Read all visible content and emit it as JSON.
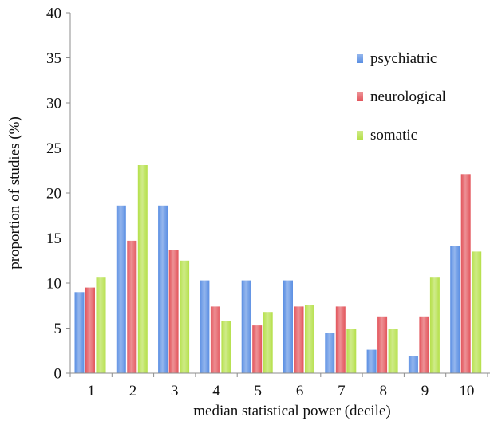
{
  "chart_data": {
    "type": "bar",
    "title": "",
    "xlabel": "median statistical power (decile)",
    "ylabel": "proportion of studies (%)",
    "ylim": [
      0,
      40
    ],
    "yticks": [
      0,
      5,
      10,
      15,
      20,
      25,
      30,
      35,
      40
    ],
    "grid": false,
    "legend_position": "top-right",
    "categories": [
      "1",
      "2",
      "3",
      "4",
      "5",
      "6",
      "7",
      "8",
      "9",
      "10"
    ],
    "series": [
      {
        "name": "psychiatric",
        "color": "#5b8fe3",
        "values": [
          9.0,
          18.6,
          18.6,
          10.3,
          10.3,
          10.3,
          4.5,
          2.6,
          1.9,
          14.1
        ]
      },
      {
        "name": "neurological",
        "color": "#e3555c",
        "values": [
          9.5,
          14.7,
          13.7,
          7.4,
          5.3,
          7.4,
          7.4,
          6.3,
          6.3,
          22.1
        ]
      },
      {
        "name": "somatic",
        "color": "#b5e04a",
        "values": [
          10.6,
          23.1,
          12.5,
          5.8,
          6.8,
          7.6,
          4.9,
          4.9,
          10.6,
          13.5
        ]
      }
    ]
  }
}
